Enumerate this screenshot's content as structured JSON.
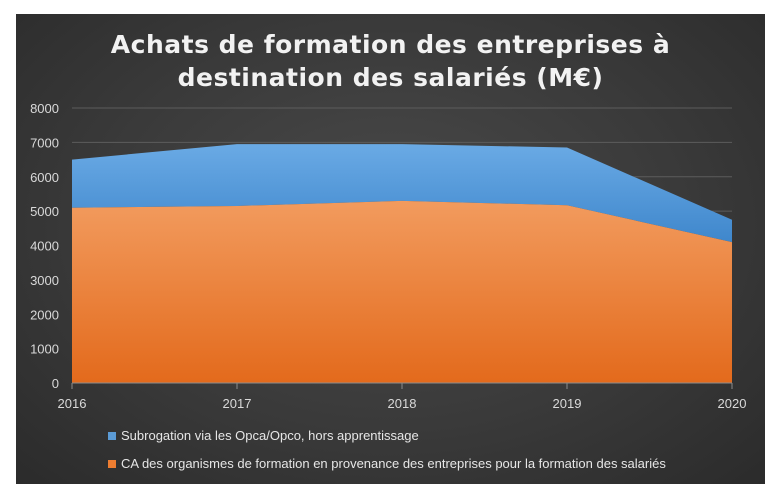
{
  "title": "Achats de formation des entreprises à\ndestination des salariés (M€)",
  "colors": {
    "series1": "#5b9bd5",
    "series2": "#ed7d31",
    "gridline": "#5c5c5c",
    "axis_text": "#d9d9d9"
  },
  "chart_data": {
    "type": "area",
    "stacked": true,
    "title": "Achats de formation des entreprises à destination des salariés (M€)",
    "x": [
      "2016",
      "2017",
      "2018",
      "2019",
      "2020"
    ],
    "series": [
      {
        "name": "CA des organismes de formation en provenance des entreprises pour la formation des salariés",
        "values": [
          5100,
          5150,
          5300,
          5170,
          4100
        ]
      },
      {
        "name": "Subrogation via les Opca/Opco, hors apprentissage",
        "values": [
          1400,
          1800,
          1650,
          1680,
          650
        ]
      }
    ],
    "ylim": [
      0,
      8000
    ],
    "yticks": [
      0,
      1000,
      2000,
      3000,
      4000,
      5000,
      6000,
      7000,
      8000
    ],
    "grid": true,
    "legend_position": "bottom"
  },
  "legend": {
    "item1": "Subrogation via les Opca/Opco, hors apprentissage",
    "item2": "CA des organismes de formation en provenance des entreprises pour la formation des salariés"
  }
}
